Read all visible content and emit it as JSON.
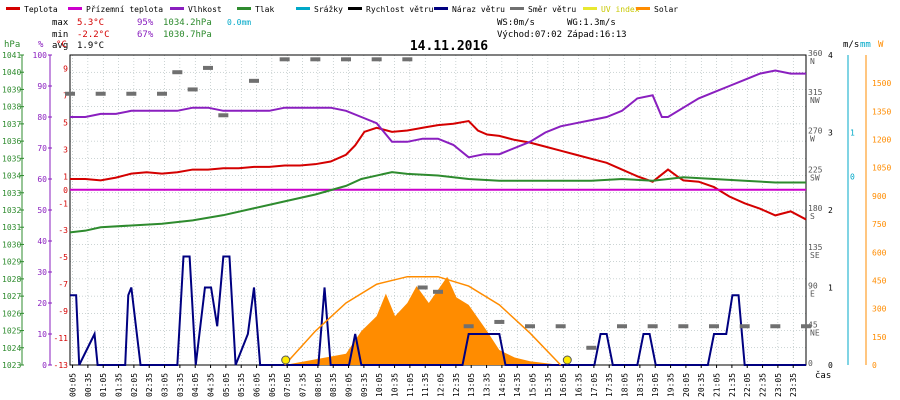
{
  "legend": [
    {
      "label": "Teplota",
      "color": "#d40000"
    },
    {
      "label": "Přízemní teplota",
      "color": "#cc00cc"
    },
    {
      "label": "Vlhkost",
      "color": "#8a1fbf"
    },
    {
      "label": "Tlak",
      "color": "#2e8b2e"
    },
    {
      "label": "Srážky",
      "color": "#00a8c8"
    },
    {
      "label": "Rychlost větru",
      "color": "#000000"
    },
    {
      "label": "Náraz větru",
      "color": "#000080"
    },
    {
      "label": "Směr větru",
      "color": "#707070"
    },
    {
      "label": "UV index",
      "color": "#e8e830"
    },
    {
      "label": "Solar",
      "color": "#ff8c00"
    }
  ],
  "stats": {
    "max_label": "max",
    "max_temp": "5.3°C",
    "max_hum": "95%",
    "max_press": "1034.2hPa",
    "max_rain": "0.0mm",
    "min_label": "min",
    "min_temp": "-2.2°C",
    "min_hum": "67%",
    "min_press": "1030.7hPa",
    "avg_label": "avg",
    "avg_temp": "1.9°C"
  },
  "wind_info": {
    "ws": "WS:0m/s",
    "wg": "WG:1.3m/s",
    "sunrise": "Východ:07:02",
    "sunset": "Západ:16:13"
  },
  "chart_title": "14.11.2016",
  "axis_units": {
    "hpa": "hPa",
    "pct": "%",
    "degc": "°C",
    "ms": "m/s",
    "mm": "mm",
    "w": "W",
    "xlabel": "čas"
  },
  "left_axes": {
    "hpa": [
      "1041",
      "1040",
      "1039",
      "1038",
      "1037",
      "1036",
      "1035",
      "1034",
      "1033",
      "1032",
      "1031",
      "1030",
      "1029",
      "1028",
      "1027",
      "1026",
      "1025",
      "1024",
      "1023"
    ],
    "pct": [
      "100",
      "90",
      "80",
      "70",
      "60",
      "50",
      "40",
      "30",
      "20",
      "10",
      "0"
    ],
    "degc": [
      "9",
      "7",
      "5",
      "3",
      "1",
      "0",
      "-1",
      "-3",
      "-5",
      "-7",
      "-9",
      "-11",
      "-13"
    ]
  },
  "right_axes": {
    "deg": [
      "360",
      "315",
      "270",
      "225",
      "180",
      "135",
      "90",
      "45",
      "0"
    ],
    "dir": [
      "N",
      "NW",
      "W",
      "SW",
      "S",
      "SE",
      "E",
      "NE",
      ""
    ],
    "ms": [
      "4",
      "3",
      "2",
      "1",
      "0"
    ],
    "mm": [
      "1",
      "0"
    ],
    "w": [
      "1500",
      "1350",
      "1200",
      "1050",
      "900",
      "750",
      "600",
      "450",
      "300",
      "150",
      "0"
    ]
  },
  "x_ticks": [
    "00:05",
    "00:35",
    "01:05",
    "01:35",
    "02:05",
    "02:35",
    "03:05",
    "03:35",
    "04:05",
    "04:35",
    "05:05",
    "05:35",
    "06:05",
    "06:35",
    "07:05",
    "07:35",
    "08:05",
    "08:35",
    "09:05",
    "09:35",
    "10:05",
    "10:35",
    "11:05",
    "11:35",
    "12:05",
    "12:35",
    "13:05",
    "13:35",
    "14:05",
    "14:35",
    "15:05",
    "15:35",
    "16:05",
    "16:35",
    "17:05",
    "17:35",
    "18:05",
    "18:35",
    "19:05",
    "19:35",
    "20:05",
    "20:35",
    "21:05",
    "21:35",
    "22:05",
    "22:35",
    "23:05",
    "23:35"
  ],
  "chart_data": {
    "type": "line",
    "title": "14.11.2016",
    "x_range_hours": [
      0,
      24
    ],
    "axes": {
      "temp_c": [
        -13,
        10
      ],
      "humidity_pct": [
        0,
        100
      ],
      "pressure_hpa": [
        1023,
        1041
      ],
      "wind_ms": [
        0,
        4
      ],
      "wind_dir_deg": [
        0,
        360
      ],
      "solar_w": [
        0,
        1650
      ]
    },
    "series": [
      {
        "name": "Teplota",
        "axis": "temp_c",
        "color": "#d40000",
        "points": [
          [
            0,
            0.8
          ],
          [
            0.5,
            0.8
          ],
          [
            1,
            0.7
          ],
          [
            1.5,
            0.9
          ],
          [
            2,
            1.2
          ],
          [
            2.5,
            1.3
          ],
          [
            3,
            1.2
          ],
          [
            3.5,
            1.3
          ],
          [
            4,
            1.5
          ],
          [
            4.5,
            1.5
          ],
          [
            5,
            1.6
          ],
          [
            5.5,
            1.6
          ],
          [
            6,
            1.7
          ],
          [
            6.5,
            1.7
          ],
          [
            7,
            1.8
          ],
          [
            7.5,
            1.8
          ],
          [
            8,
            1.9
          ],
          [
            8.5,
            2.1
          ],
          [
            9,
            2.6
          ],
          [
            9.3,
            3.3
          ],
          [
            9.6,
            4.3
          ],
          [
            10,
            4.6
          ],
          [
            10.5,
            4.3
          ],
          [
            11,
            4.4
          ],
          [
            11.5,
            4.6
          ],
          [
            12,
            4.8
          ],
          [
            12.5,
            4.9
          ],
          [
            13,
            5.1
          ],
          [
            13.3,
            4.4
          ],
          [
            13.6,
            4.1
          ],
          [
            14,
            4.0
          ],
          [
            14.5,
            3.7
          ],
          [
            15,
            3.5
          ],
          [
            15.5,
            3.2
          ],
          [
            16,
            2.9
          ],
          [
            16.5,
            2.6
          ],
          [
            17,
            2.3
          ],
          [
            17.5,
            2.0
          ],
          [
            18,
            1.5
          ],
          [
            18.5,
            1.0
          ],
          [
            19,
            0.6
          ],
          [
            19.5,
            1.5
          ],
          [
            19.8,
            1.0
          ],
          [
            20,
            0.7
          ],
          [
            20.5,
            0.6
          ],
          [
            21,
            0.2
          ],
          [
            21.5,
            -0.5
          ],
          [
            22,
            -1.0
          ],
          [
            22.5,
            -1.4
          ],
          [
            23,
            -1.9
          ],
          [
            23.5,
            -1.6
          ],
          [
            24,
            -2.2
          ]
        ]
      },
      {
        "name": "Přízemní teplota",
        "axis": "temp_c",
        "color": "#cc00cc",
        "points": [
          [
            0,
            0
          ],
          [
            24,
            0
          ]
        ]
      },
      {
        "name": "Vlhkost",
        "axis": "humidity_pct",
        "color": "#8a1fbf",
        "points": [
          [
            0,
            80
          ],
          [
            0.5,
            80
          ],
          [
            1,
            81
          ],
          [
            1.5,
            81
          ],
          [
            2,
            82
          ],
          [
            2.5,
            82
          ],
          [
            3,
            82
          ],
          [
            3.5,
            82
          ],
          [
            4,
            83
          ],
          [
            4.5,
            83
          ],
          [
            5,
            82
          ],
          [
            5.5,
            82
          ],
          [
            6,
            82
          ],
          [
            6.5,
            82
          ],
          [
            7,
            83
          ],
          [
            7.5,
            83
          ],
          [
            8,
            83
          ],
          [
            8.5,
            83
          ],
          [
            9,
            82
          ],
          [
            9.5,
            80
          ],
          [
            10,
            78
          ],
          [
            10.5,
            72
          ],
          [
            11,
            72
          ],
          [
            11.5,
            73
          ],
          [
            12,
            73
          ],
          [
            12.5,
            71
          ],
          [
            13,
            67
          ],
          [
            13.5,
            68
          ],
          [
            14,
            68
          ],
          [
            14.5,
            70
          ],
          [
            15,
            72
          ],
          [
            15.5,
            75
          ],
          [
            16,
            77
          ],
          [
            16.5,
            78
          ],
          [
            17,
            79
          ],
          [
            17.5,
            80
          ],
          [
            18,
            82
          ],
          [
            18.5,
            86
          ],
          [
            19,
            87
          ],
          [
            19.3,
            80
          ],
          [
            19.5,
            80
          ],
          [
            20,
            83
          ],
          [
            20.5,
            86
          ],
          [
            21,
            88
          ],
          [
            21.5,
            90
          ],
          [
            22,
            92
          ],
          [
            22.5,
            94
          ],
          [
            23,
            95
          ],
          [
            23.5,
            94
          ],
          [
            24,
            94
          ]
        ]
      },
      {
        "name": "Tlak",
        "axis": "pressure_hpa",
        "color": "#2e8b2e",
        "points": [
          [
            0,
            1030.7
          ],
          [
            0.5,
            1030.8
          ],
          [
            1,
            1031.0
          ],
          [
            2,
            1031.1
          ],
          [
            3,
            1031.2
          ],
          [
            4,
            1031.4
          ],
          [
            5,
            1031.7
          ],
          [
            6,
            1032.1
          ],
          [
            7,
            1032.5
          ],
          [
            8,
            1032.9
          ],
          [
            9,
            1033.4
          ],
          [
            9.5,
            1033.8
          ],
          [
            10,
            1034.0
          ],
          [
            10.5,
            1034.2
          ],
          [
            11,
            1034.1
          ],
          [
            12,
            1034.0
          ],
          [
            13,
            1033.8
          ],
          [
            14,
            1033.7
          ],
          [
            15,
            1033.7
          ],
          [
            16,
            1033.7
          ],
          [
            17,
            1033.7
          ],
          [
            18,
            1033.8
          ],
          [
            19,
            1033.7
          ],
          [
            20,
            1033.9
          ],
          [
            21,
            1033.8
          ],
          [
            22,
            1033.7
          ],
          [
            23,
            1033.6
          ],
          [
            24,
            1033.6
          ]
        ]
      },
      {
        "name": "Náraz větru",
        "axis": "wind_ms",
        "color": "#000080",
        "points": [
          [
            0,
            0.9
          ],
          [
            0.2,
            0.9
          ],
          [
            0.3,
            0
          ],
          [
            0.8,
            0.4
          ],
          [
            0.9,
            0
          ],
          [
            1.8,
            0
          ],
          [
            1.9,
            0.9
          ],
          [
            2.0,
            1.0
          ],
          [
            2.3,
            0
          ],
          [
            3.5,
            0
          ],
          [
            3.7,
            1.4
          ],
          [
            3.9,
            1.4
          ],
          [
            4.1,
            0
          ],
          [
            4.4,
            1.0
          ],
          [
            4.6,
            1.0
          ],
          [
            4.8,
            0.5
          ],
          [
            5.0,
            1.4
          ],
          [
            5.2,
            1.4
          ],
          [
            5.4,
            0
          ],
          [
            5.8,
            0.4
          ],
          [
            6.0,
            1.0
          ],
          [
            6.2,
            0
          ],
          [
            8.1,
            0
          ],
          [
            8.3,
            1.0
          ],
          [
            8.5,
            0
          ],
          [
            9.1,
            0
          ],
          [
            9.3,
            0.4
          ],
          [
            9.5,
            0
          ],
          [
            12.8,
            0
          ],
          [
            13.0,
            0.4
          ],
          [
            14.0,
            0.4
          ],
          [
            14.2,
            0
          ],
          [
            17.1,
            0
          ],
          [
            17.3,
            0.4
          ],
          [
            17.5,
            0.4
          ],
          [
            17.7,
            0
          ],
          [
            18.5,
            0
          ],
          [
            18.7,
            0.4
          ],
          [
            18.9,
            0.4
          ],
          [
            19.1,
            0
          ],
          [
            20.8,
            0
          ],
          [
            21.0,
            0.4
          ],
          [
            21.4,
            0.4
          ],
          [
            21.6,
            0.9
          ],
          [
            21.8,
            0.9
          ],
          [
            22.0,
            0
          ],
          [
            24,
            0
          ]
        ]
      },
      {
        "name": "Solar",
        "axis": "solar_w",
        "color": "#ff8c00",
        "points": [
          [
            7.0,
            0
          ],
          [
            8.0,
            30
          ],
          [
            9.0,
            60
          ],
          [
            9.5,
            180
          ],
          [
            10.0,
            260
          ],
          [
            10.3,
            380
          ],
          [
            10.6,
            260
          ],
          [
            11.0,
            330
          ],
          [
            11.3,
            420
          ],
          [
            11.7,
            330
          ],
          [
            12.0,
            400
          ],
          [
            12.3,
            470
          ],
          [
            12.6,
            360
          ],
          [
            13.0,
            320
          ],
          [
            13.3,
            250
          ],
          [
            13.6,
            180
          ],
          [
            14.0,
            80
          ],
          [
            14.5,
            40
          ],
          [
            15.0,
            20
          ],
          [
            16.0,
            0
          ]
        ]
      },
      {
        "name": "Solar",
        "axis": "solar_w",
        "color": "#ff8c00",
        "style": "line",
        "points": [
          [
            7.0,
            0
          ],
          [
            8.0,
            180
          ],
          [
            9.0,
            330
          ],
          [
            10.0,
            430
          ],
          [
            11.0,
            470
          ],
          [
            12.0,
            470
          ],
          [
            13.0,
            420
          ],
          [
            14.0,
            320
          ],
          [
            15.0,
            170
          ],
          [
            16.0,
            0
          ]
        ]
      },
      {
        "name": "Směr větru",
        "axis": "wind_dir_deg",
        "color": "#707070",
        "style": "dashes",
        "points": [
          [
            0,
            315
          ],
          [
            1,
            315
          ],
          [
            2,
            315
          ],
          [
            3,
            315
          ],
          [
            3.5,
            340
          ],
          [
            4,
            320
          ],
          [
            4.5,
            345
          ],
          [
            5,
            290
          ],
          [
            6,
            330
          ],
          [
            7,
            355
          ],
          [
            8,
            355
          ],
          [
            9,
            355
          ],
          [
            10,
            355
          ],
          [
            11,
            355
          ],
          [
            11.5,
            90
          ],
          [
            12,
            85
          ],
          [
            13,
            45
          ],
          [
            14,
            50
          ],
          [
            15,
            45
          ],
          [
            16,
            45
          ],
          [
            17,
            20
          ],
          [
            18,
            45
          ],
          [
            19,
            45
          ],
          [
            20,
            45
          ],
          [
            21,
            45
          ],
          [
            22,
            45
          ],
          [
            23,
            45
          ],
          [
            24,
            45
          ]
        ]
      }
    ]
  }
}
